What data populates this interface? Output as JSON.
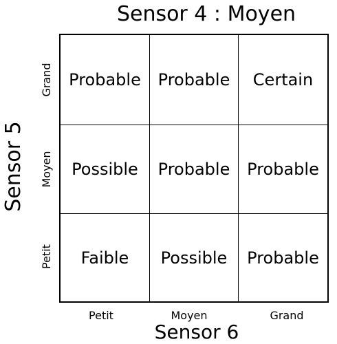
{
  "title": "Sensor 4 : Moyen",
  "y_axis": {
    "label": "Sensor 5",
    "ticks": [
      "Grand",
      "Moyen",
      "Petit"
    ]
  },
  "x_axis": {
    "label": "Sensor 6",
    "ticks": [
      "Petit",
      "Moyen",
      "Grand"
    ]
  },
  "cells": [
    [
      "Probable",
      "Probable",
      "Certain"
    ],
    [
      "Possible",
      "Probable",
      "Probable"
    ],
    [
      "Faible",
      "Possible",
      "Probable"
    ]
  ]
}
